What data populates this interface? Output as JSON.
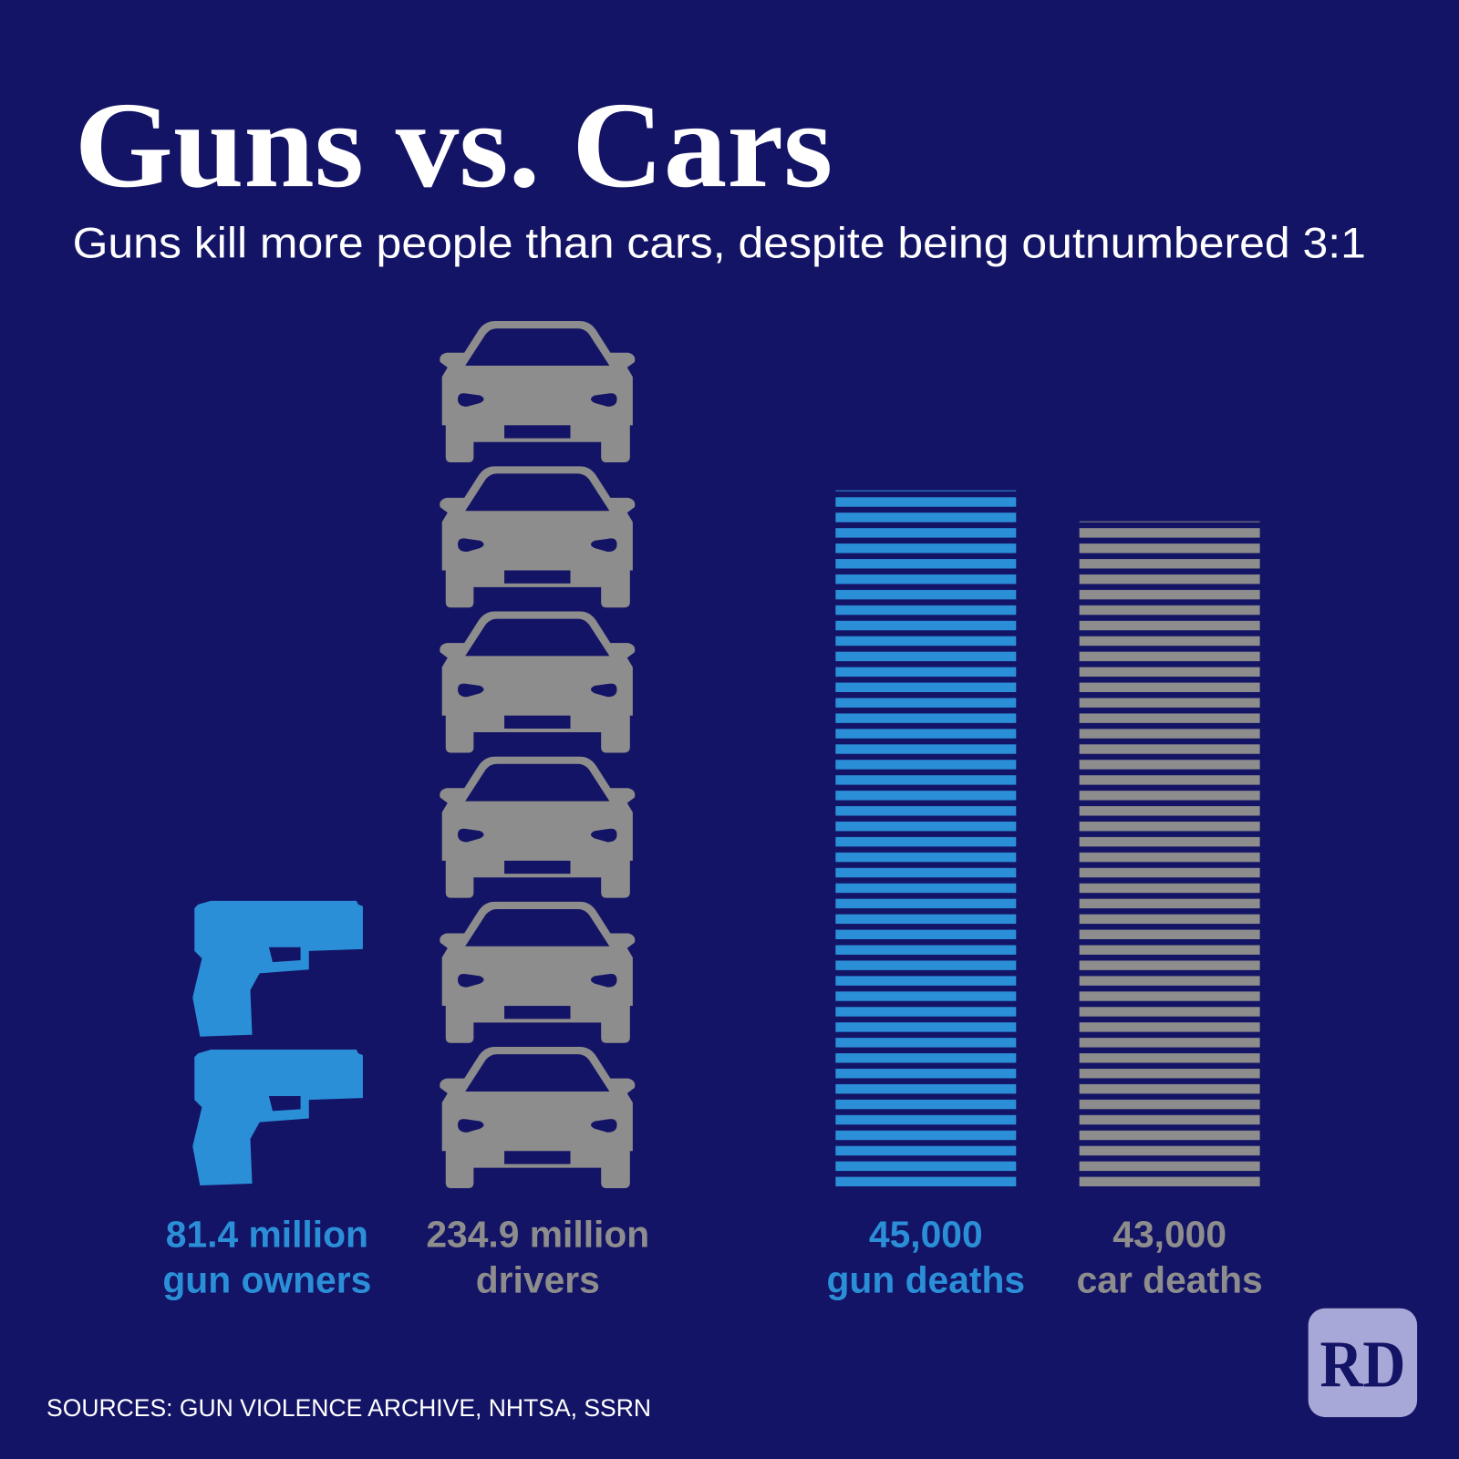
{
  "title": "Guns vs. Cars",
  "subtitle": "Guns kill more people than cars, despite being outnumbered 3:1",
  "source": "SOURCES: GUN VIOLENCE ARCHIVE, NHTSA, SSRN",
  "logo": "RD",
  "chart_data": [
    {
      "type": "pictogram",
      "categories": [
        "gun owners",
        "drivers"
      ],
      "values": [
        81.4,
        234.9
      ],
      "value_labels": [
        "81.4 million",
        "234.9 million"
      ],
      "colors": [
        "#2b8fd8",
        "#8d8d8d"
      ]
    },
    {
      "type": "bar",
      "categories": [
        "gun deaths",
        "car deaths"
      ],
      "values": [
        45000,
        43000
      ],
      "value_labels": [
        "45,000",
        "43,000"
      ],
      "colors": [
        "#2b8fd8",
        "#8d8d8d"
      ]
    }
  ]
}
